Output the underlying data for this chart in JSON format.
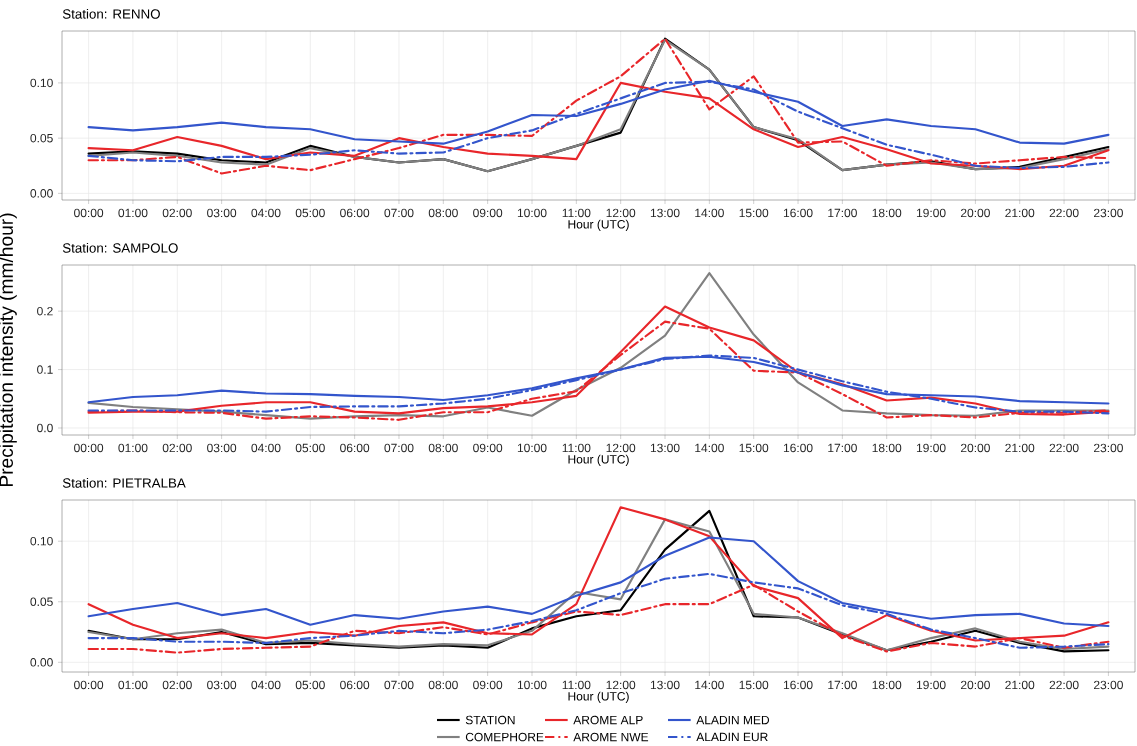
{
  "chart_data": [
    {
      "type": "line",
      "title": "Station: RENNO",
      "xlabel": "Hour (UTC)",
      "categories": [
        "00:00",
        "01:00",
        "02:00",
        "03:00",
        "04:00",
        "05:00",
        "06:00",
        "07:00",
        "08:00",
        "09:00",
        "10:00",
        "11:00",
        "12:00",
        "13:00",
        "14:00",
        "15:00",
        "16:00",
        "17:00",
        "18:00",
        "19:00",
        "20:00",
        "21:00",
        "22:00",
        "23:00"
      ],
      "ylim": [
        -0.006,
        0.147
      ],
      "yticks": [
        {
          "value": 0,
          "label": "0.00"
        },
        {
          "value": 0.05,
          "label": "0.05"
        },
        {
          "value": 0.1,
          "label": "0.10"
        }
      ],
      "grid": true,
      "series": [
        {
          "color": "#000000",
          "line_style": "solid",
          "values": [
            0.036,
            0.038,
            0.036,
            0.03,
            0.028,
            0.043,
            0.033,
            0.028,
            0.031,
            0.02,
            0.031,
            0.043,
            0.055,
            0.14,
            0.112,
            0.06,
            0.048,
            0.021,
            0.026,
            0.029,
            0.022,
            0.024,
            0.033,
            0.042
          ]
        },
        {
          "color": "#808080",
          "line_style": "solid",
          "values": [
            0.034,
            0.037,
            0.034,
            0.028,
            0.026,
            0.041,
            0.033,
            0.028,
            0.031,
            0.02,
            0.031,
            0.043,
            0.058,
            0.139,
            0.112,
            0.06,
            0.049,
            0.021,
            0.026,
            0.028,
            0.022,
            0.023,
            0.031,
            0.04
          ]
        },
        {
          "color": "#e8262a",
          "line_style": "solid",
          "values": [
            0.041,
            0.039,
            0.051,
            0.043,
            0.031,
            0.037,
            0.034,
            0.05,
            0.042,
            0.036,
            0.034,
            0.031,
            0.1,
            0.092,
            0.086,
            0.058,
            0.042,
            0.051,
            0.04,
            0.027,
            0.025,
            0.022,
            0.025,
            0.039
          ]
        },
        {
          "color": "#e8262a",
          "line_style": "dashed",
          "values": [
            0.03,
            0.03,
            0.033,
            0.018,
            0.025,
            0.021,
            0.031,
            0.041,
            0.053,
            0.053,
            0.052,
            0.084,
            0.106,
            0.14,
            0.076,
            0.106,
            0.046,
            0.047,
            0.025,
            0.03,
            0.027,
            0.03,
            0.033,
            0.032
          ]
        },
        {
          "color": "#3355cc",
          "line_style": "solid",
          "values": [
            0.06,
            0.057,
            0.06,
            0.064,
            0.06,
            0.058,
            0.049,
            0.047,
            0.045,
            0.056,
            0.071,
            0.07,
            0.081,
            0.094,
            0.102,
            0.092,
            0.083,
            0.061,
            0.067,
            0.061,
            0.058,
            0.046,
            0.045,
            0.053
          ]
        },
        {
          "color": "#3355cc",
          "line_style": "dashed",
          "values": [
            0.034,
            0.03,
            0.029,
            0.033,
            0.033,
            0.035,
            0.039,
            0.036,
            0.037,
            0.05,
            0.057,
            0.072,
            0.086,
            0.1,
            0.101,
            0.094,
            0.074,
            0.059,
            0.044,
            0.035,
            0.025,
            0.023,
            0.024,
            0.028
          ]
        }
      ]
    },
    {
      "type": "line",
      "title": "Station: SAMPOLO",
      "xlabel": "Hour (UTC)",
      "ylabel": "Precipitation intensity (mm/hour)",
      "categories": [
        "00:00",
        "01:00",
        "02:00",
        "03:00",
        "04:00",
        "05:00",
        "06:00",
        "07:00",
        "08:00",
        "09:00",
        "10:00",
        "11:00",
        "12:00",
        "13:00",
        "14:00",
        "15:00",
        "16:00",
        "17:00",
        "18:00",
        "19:00",
        "20:00",
        "21:00",
        "22:00",
        "23:00"
      ],
      "ylim": [
        -0.012,
        0.279
      ],
      "yticks": [
        {
          "value": 0,
          "label": "0.0"
        },
        {
          "value": 0.1,
          "label": "0.1"
        },
        {
          "value": 0.2,
          "label": "0.2"
        }
      ],
      "grid": true,
      "series": [
        {
          "color": "#808080",
          "line_style": "solid",
          "values": [
            0.043,
            0.036,
            0.032,
            0.028,
            0.022,
            0.016,
            0.02,
            0.022,
            0.02,
            0.035,
            0.021,
            0.065,
            0.103,
            0.158,
            0.265,
            0.16,
            0.078,
            0.03,
            0.025,
            0.022,
            0.021,
            0.03,
            0.03,
            0.03
          ]
        },
        {
          "color": "#e8262a",
          "line_style": "solid",
          "values": [
            0.026,
            0.028,
            0.028,
            0.038,
            0.044,
            0.044,
            0.028,
            0.025,
            0.034,
            0.037,
            0.044,
            0.055,
            0.13,
            0.208,
            0.172,
            0.15,
            0.095,
            0.075,
            0.047,
            0.052,
            0.042,
            0.024,
            0.023,
            0.028
          ]
        },
        {
          "color": "#e8262a",
          "line_style": "dashed",
          "values": [
            0.028,
            0.03,
            0.027,
            0.026,
            0.016,
            0.02,
            0.018,
            0.014,
            0.027,
            0.027,
            0.05,
            0.063,
            0.125,
            0.182,
            0.17,
            0.098,
            0.095,
            0.058,
            0.018,
            0.022,
            0.018,
            0.026,
            0.026,
            0.03
          ]
        },
        {
          "color": "#3355cc",
          "line_style": "solid",
          "values": [
            0.044,
            0.053,
            0.056,
            0.064,
            0.059,
            0.058,
            0.055,
            0.053,
            0.048,
            0.056,
            0.068,
            0.085,
            0.1,
            0.12,
            0.122,
            0.113,
            0.095,
            0.073,
            0.058,
            0.056,
            0.054,
            0.046,
            0.044,
            0.042
          ]
        },
        {
          "color": "#3355cc",
          "line_style": "dashed",
          "values": [
            0.03,
            0.03,
            0.03,
            0.03,
            0.028,
            0.036,
            0.037,
            0.037,
            0.042,
            0.05,
            0.065,
            0.082,
            0.1,
            0.118,
            0.124,
            0.12,
            0.1,
            0.08,
            0.062,
            0.05,
            0.035,
            0.028,
            0.028,
            0.025
          ]
        }
      ]
    },
    {
      "type": "line",
      "title": "Station: PIETRALBA",
      "xlabel": "Hour (UTC)",
      "categories": [
        "00:00",
        "01:00",
        "02:00",
        "03:00",
        "04:00",
        "05:00",
        "06:00",
        "07:00",
        "08:00",
        "09:00",
        "10:00",
        "11:00",
        "12:00",
        "13:00",
        "14:00",
        "15:00",
        "16:00",
        "17:00",
        "18:00",
        "19:00",
        "20:00",
        "21:00",
        "22:00",
        "23:00"
      ],
      "ylim": [
        -0.008,
        0.134
      ],
      "yticks": [
        {
          "value": 0,
          "label": "0.00"
        },
        {
          "value": 0.05,
          "label": "0.05"
        },
        {
          "value": 0.1,
          "label": "0.10"
        }
      ],
      "grid": true,
      "legend": "bottom",
      "series": [
        {
          "name": "STATION",
          "color": "#000000",
          "line_style": "solid",
          "values": [
            0.026,
            0.019,
            0.019,
            0.025,
            0.015,
            0.016,
            0.014,
            0.012,
            0.014,
            0.012,
            0.028,
            0.038,
            0.043,
            0.093,
            0.125,
            0.038,
            0.037,
            0.023,
            0.01,
            0.017,
            0.026,
            0.016,
            0.009,
            0.01
          ]
        },
        {
          "name": "COMEPHORE",
          "color": "#808080",
          "line_style": "solid",
          "values": [
            0.025,
            0.019,
            0.024,
            0.027,
            0.016,
            0.018,
            0.015,
            0.013,
            0.015,
            0.014,
            0.026,
            0.058,
            0.052,
            0.118,
            0.108,
            0.04,
            0.037,
            0.024,
            0.01,
            0.02,
            0.028,
            0.017,
            0.011,
            0.013
          ]
        },
        {
          "name": "AROME ALP",
          "color": "#e8262a",
          "line_style": "solid",
          "values": [
            0.048,
            0.031,
            0.02,
            0.024,
            0.02,
            0.025,
            0.022,
            0.03,
            0.033,
            0.024,
            0.023,
            0.048,
            0.128,
            0.118,
            0.104,
            0.063,
            0.053,
            0.02,
            0.039,
            0.026,
            0.018,
            0.02,
            0.022,
            0.033
          ]
        },
        {
          "name": "AROME NWE",
          "color": "#e8262a",
          "line_style": "dashed",
          "values": [
            0.011,
            0.011,
            0.008,
            0.011,
            0.012,
            0.013,
            0.026,
            0.024,
            0.029,
            0.023,
            0.033,
            0.042,
            0.039,
            0.048,
            0.048,
            0.064,
            0.042,
            0.022,
            0.009,
            0.016,
            0.013,
            0.02,
            0.012,
            0.017
          ]
        },
        {
          "name": "ALADIN MED",
          "color": "#3355cc",
          "line_style": "solid",
          "values": [
            0.038,
            0.044,
            0.049,
            0.039,
            0.044,
            0.031,
            0.039,
            0.036,
            0.042,
            0.046,
            0.04,
            0.055,
            0.066,
            0.088,
            0.103,
            0.1,
            0.067,
            0.049,
            0.042,
            0.036,
            0.039,
            0.04,
            0.032,
            0.03
          ]
        },
        {
          "name": "ALADIN EUR",
          "color": "#3355cc",
          "line_style": "dashed",
          "values": [
            0.02,
            0.02,
            0.017,
            0.017,
            0.016,
            0.02,
            0.022,
            0.026,
            0.024,
            0.027,
            0.034,
            0.043,
            0.057,
            0.069,
            0.073,
            0.066,
            0.061,
            0.047,
            0.04,
            0.027,
            0.02,
            0.012,
            0.013,
            0.015
          ]
        }
      ]
    }
  ]
}
